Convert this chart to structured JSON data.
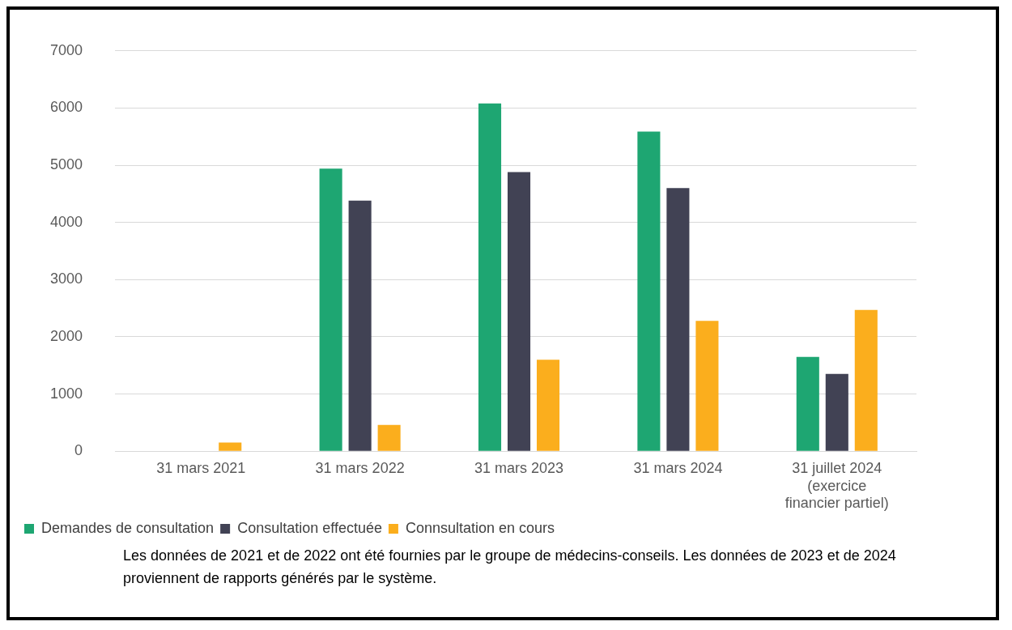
{
  "chart_data": {
    "type": "bar",
    "categories": [
      "31 mars 2021",
      "31 mars 2022",
      "31 mars 2023",
      "31 mars 2024",
      "31 juillet 2024 (exercice financier partiel)"
    ],
    "series": [
      {
        "name": "Demandes de consultation",
        "color": "#1ea672",
        "values": [
          null,
          4940,
          6080,
          5590,
          1650
        ]
      },
      {
        "name": "Consultation effectuée",
        "color": "#414254",
        "values": [
          null,
          4380,
          4880,
          4600,
          1350
        ]
      },
      {
        "name": "Connsultation en cours",
        "color": "#fbae1d",
        "values": [
          150,
          460,
          1600,
          2280,
          2470
        ]
      }
    ],
    "ylim": [
      0,
      7000
    ],
    "yticks": [
      0,
      1000,
      2000,
      3000,
      4000,
      5000,
      6000,
      7000
    ],
    "grid": "y",
    "legend": "bottom",
    "annotations": [
      "Les données de 2021 et de 2022 ont été fournies par le groupe de médecins-conseils. Les données de 2023 et de 2024 proviennent de rapports générés par le système."
    ]
  }
}
